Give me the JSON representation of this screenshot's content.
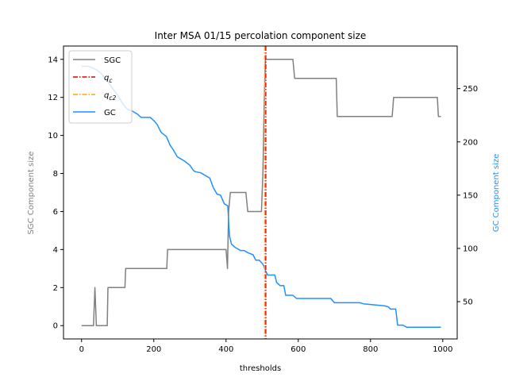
{
  "chart_data": {
    "type": "line",
    "title": "Inter MSA 01/15 percolation component size",
    "xlabel": "thresholds",
    "ylabel_left": "SGC Component size",
    "ylabel_right": "GC Component size",
    "xlim": [
      -50,
      1040
    ],
    "ylim_left": [
      -0.7,
      14.7
    ],
    "ylim_right": [
      15,
      290
    ],
    "x_ticks": [
      0,
      200,
      400,
      600,
      800,
      1000
    ],
    "y_left_ticks": [
      0,
      2,
      4,
      6,
      8,
      10,
      12,
      14
    ],
    "y_right_ticks": [
      50,
      100,
      150,
      200,
      250
    ],
    "grid": false,
    "legend_position": "upper-left",
    "colors": {
      "sgc": "#808080",
      "qc": "#e00000",
      "qc2": "#ffa500",
      "gc": "#1e90ff"
    },
    "legend": [
      {
        "key": "sgc",
        "label": "SGC",
        "style": "solid"
      },
      {
        "key": "qc",
        "label": "q",
        "sub": "c",
        "style": "dashdot"
      },
      {
        "key": "qc2",
        "label": "q",
        "sub": "c2",
        "style": "dashdot"
      },
      {
        "key": "gc",
        "label": "GC",
        "style": "solid"
      }
    ],
    "vlines": [
      {
        "key": "qc",
        "name": "q_c",
        "x": 510,
        "color": "#e00000"
      },
      {
        "key": "qc2",
        "name": "q_c2",
        "x": 507,
        "color": "#ffa500"
      }
    ],
    "series": [
      {
        "name": "SGC",
        "axis": "left",
        "color": "#808080",
        "points": [
          [
            0,
            0
          ],
          [
            33,
            0
          ],
          [
            37,
            2
          ],
          [
            41,
            0
          ],
          [
            71,
            0
          ],
          [
            73,
            2
          ],
          [
            120,
            2
          ],
          [
            122,
            3
          ],
          [
            236,
            3
          ],
          [
            238,
            4
          ],
          [
            400,
            4
          ],
          [
            404,
            3
          ],
          [
            407,
            6
          ],
          [
            412,
            7
          ],
          [
            455,
            7
          ],
          [
            460,
            6
          ],
          [
            498,
            6
          ],
          [
            502,
            8
          ],
          [
            506,
            12
          ],
          [
            509,
            14
          ],
          [
            585,
            14
          ],
          [
            590,
            13
          ],
          [
            705,
            13
          ],
          [
            708,
            11
          ],
          [
            860,
            11
          ],
          [
            864,
            12
          ],
          [
            985,
            12
          ],
          [
            988,
            11
          ],
          [
            995,
            11
          ]
        ]
      },
      {
        "name": "GC",
        "axis": "right",
        "color": "#1e90ff",
        "points": [
          [
            0,
            271
          ],
          [
            20,
            271
          ],
          [
            40,
            268
          ],
          [
            55,
            264
          ],
          [
            70,
            258
          ],
          [
            80,
            253
          ],
          [
            90,
            248
          ],
          [
            100,
            244
          ],
          [
            110,
            238
          ],
          [
            120,
            233
          ],
          [
            130,
            230
          ],
          [
            140,
            229
          ],
          [
            155,
            226
          ],
          [
            165,
            223
          ],
          [
            175,
            223
          ],
          [
            190,
            223
          ],
          [
            200,
            220
          ],
          [
            210,
            216
          ],
          [
            220,
            209
          ],
          [
            235,
            205
          ],
          [
            245,
            197
          ],
          [
            255,
            192
          ],
          [
            265,
            186
          ],
          [
            275,
            184
          ],
          [
            285,
            182
          ],
          [
            300,
            178
          ],
          [
            310,
            173
          ],
          [
            315,
            172
          ],
          [
            330,
            171
          ],
          [
            345,
            168
          ],
          [
            355,
            166
          ],
          [
            365,
            157
          ],
          [
            375,
            151
          ],
          [
            385,
            150
          ],
          [
            395,
            142
          ],
          [
            405,
            140
          ],
          [
            408,
            120
          ],
          [
            410,
            111
          ],
          [
            415,
            104
          ],
          [
            425,
            101
          ],
          [
            440,
            98
          ],
          [
            450,
            98
          ],
          [
            460,
            96
          ],
          [
            475,
            94
          ],
          [
            482,
            89
          ],
          [
            492,
            89
          ],
          [
            500,
            86
          ],
          [
            504,
            84
          ],
          [
            508,
            80
          ],
          [
            515,
            75
          ],
          [
            535,
            75
          ],
          [
            540,
            68
          ],
          [
            550,
            65
          ],
          [
            560,
            65
          ],
          [
            565,
            56
          ],
          [
            585,
            56
          ],
          [
            595,
            53
          ],
          [
            640,
            53
          ],
          [
            690,
            53
          ],
          [
            700,
            49
          ],
          [
            770,
            49
          ],
          [
            780,
            48
          ],
          [
            840,
            46
          ],
          [
            850,
            45
          ],
          [
            855,
            43
          ],
          [
            870,
            43
          ],
          [
            875,
            28
          ],
          [
            890,
            28
          ],
          [
            900,
            26
          ],
          [
            995,
            26
          ]
        ]
      }
    ]
  }
}
